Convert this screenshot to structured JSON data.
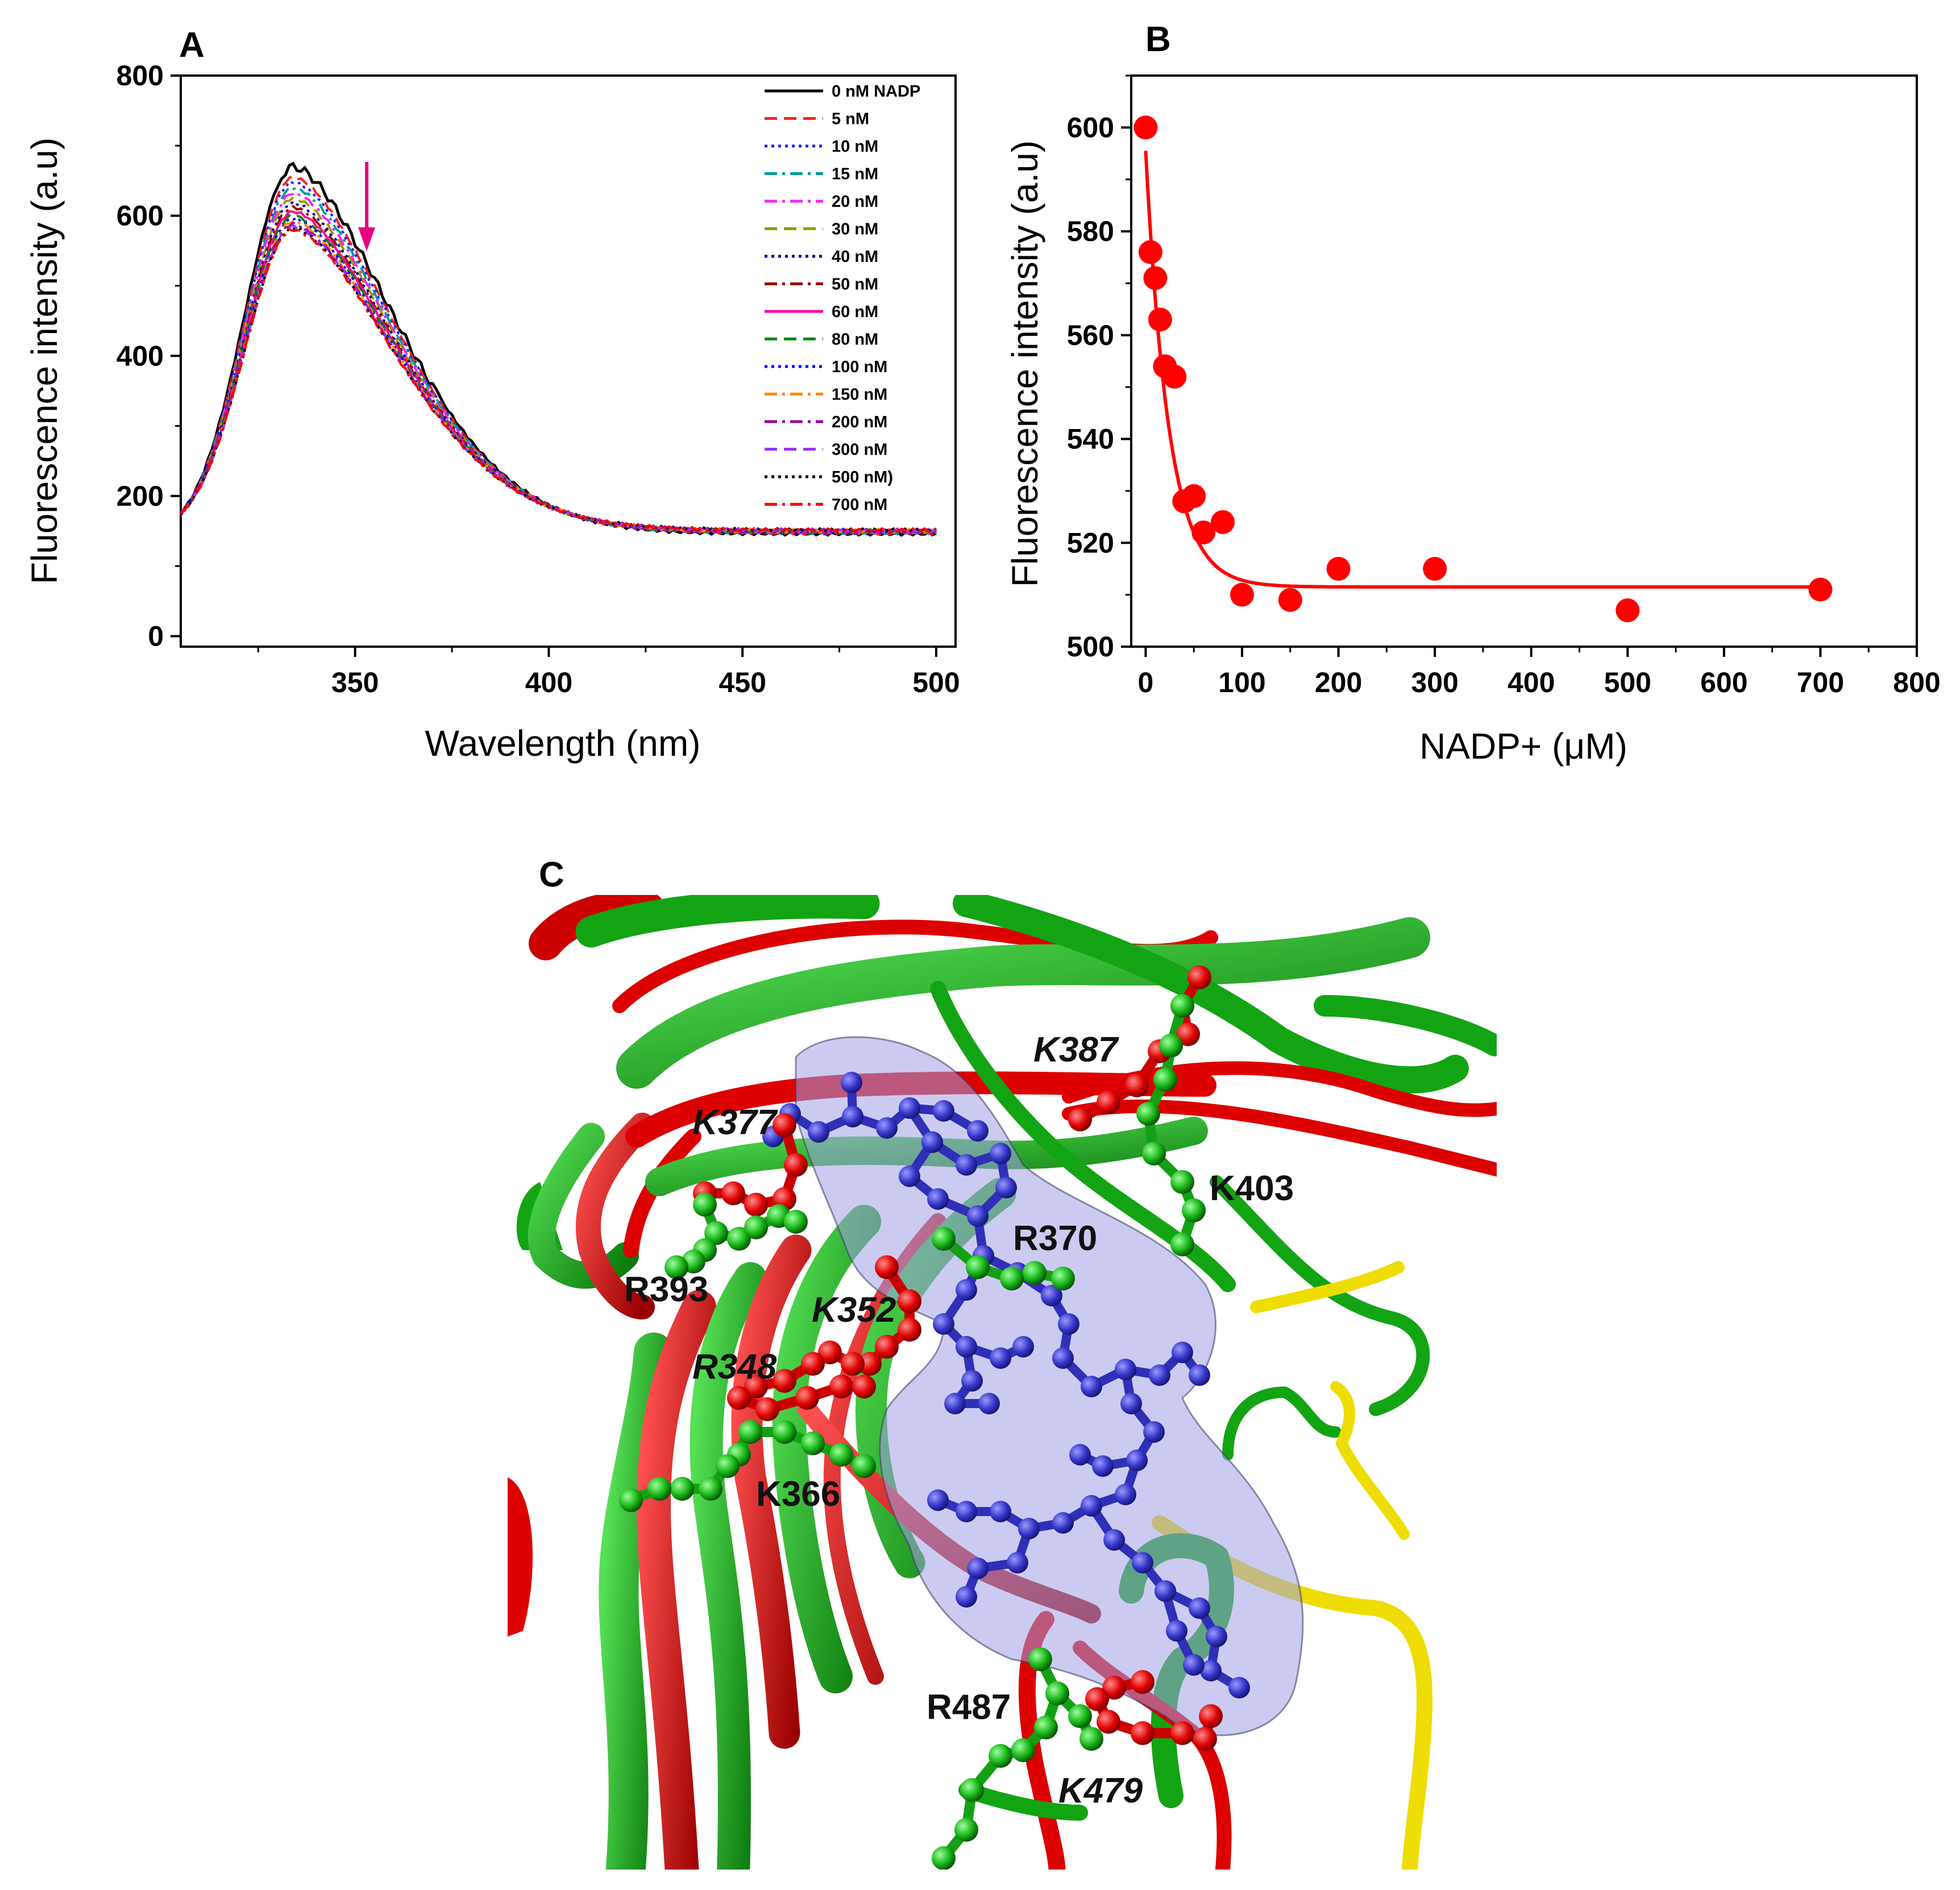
{
  "panels": {
    "A": "A",
    "B": "B",
    "C": "C"
  },
  "chart_data": [
    {
      "panel": "A",
      "type": "line",
      "xlabel": "Wavelength (nm)",
      "ylabel": "Fluorescence intensity (a.u)",
      "xlim": [
        305,
        505
      ],
      "ylim": [
        -15,
        800
      ],
      "xticks": [
        350,
        400,
        450,
        500
      ],
      "yticks": [
        0,
        200,
        400,
        600,
        800
      ],
      "peak_wavelength": 334,
      "arrow_wavelength": 353,
      "arrow_color": "#e6007e",
      "series": [
        {
          "name": "0 nM NADP",
          "peak": 670,
          "color": "#000000",
          "dash": "solid"
        },
        {
          "name": "5 nM",
          "peak": 655,
          "color": "#ff2020",
          "dash": "dash"
        },
        {
          "name": "10 nM",
          "peak": 648,
          "color": "#2020ff",
          "dash": "dot"
        },
        {
          "name": "15 nM",
          "peak": 640,
          "color": "#009999",
          "dash": "dashdot"
        },
        {
          "name": "20 nM",
          "peak": 632,
          "color": "#ff20ff",
          "dash": "dashdot"
        },
        {
          "name": "30 nM",
          "peak": 625,
          "color": "#999900",
          "dash": "dash"
        },
        {
          "name": "40 nM",
          "peak": 618,
          "color": "#000099",
          "dash": "dot"
        },
        {
          "name": "50 nM",
          "peak": 612,
          "color": "#990000",
          "dash": "dashdot"
        },
        {
          "name": "60 nM",
          "peak": 606,
          "color": "#ff0099",
          "dash": "solid"
        },
        {
          "name": "80 nM",
          "peak": 600,
          "color": "#008800",
          "dash": "dash"
        },
        {
          "name": "100 nM",
          "peak": 596,
          "color": "#0000ff",
          "dash": "dot"
        },
        {
          "name": "150 nM",
          "peak": 592,
          "color": "#ff8800",
          "dash": "dashdot"
        },
        {
          "name": "200 nM",
          "peak": 588,
          "color": "#990099",
          "dash": "dashdot"
        },
        {
          "name": "300 nM",
          "peak": 585,
          "color": "#9933ff",
          "dash": "dash"
        },
        {
          "name": "500 nM)",
          "peak": 582,
          "color": "#000000",
          "dash": "dot"
        },
        {
          "name": "700 nM",
          "peak": 580,
          "color": "#ff0000",
          "dash": "dashdot"
        }
      ]
    },
    {
      "panel": "B",
      "type": "scatter",
      "xlabel": "NADP+ (μM)",
      "ylabel": "Fluorescence intensity (a.u)",
      "xlim": [
        -15,
        800
      ],
      "ylim": [
        500,
        610
      ],
      "xticks": [
        0,
        100,
        200,
        300,
        400,
        500,
        600,
        700,
        800
      ],
      "yticks": [
        500,
        520,
        540,
        560,
        580,
        600
      ],
      "color": "#ff0000",
      "x": [
        0,
        5,
        10,
        15,
        20,
        30,
        40,
        50,
        60,
        80,
        100,
        150,
        200,
        300,
        500,
        700
      ],
      "y": [
        600,
        576,
        571,
        563,
        554,
        552,
        528,
        529,
        522,
        524,
        510,
        509,
        515,
        515,
        507,
        511
      ],
      "fit": {
        "type": "exponential",
        "y0": 511.5,
        "A": 84,
        "tau": 24
      }
    }
  ],
  "structure": {
    "labels": [
      {
        "text": "K387",
        "italic": true
      },
      {
        "text": "K377",
        "italic": true
      },
      {
        "text": "K403",
        "italic": false
      },
      {
        "text": "R370",
        "italic": false
      },
      {
        "text": "R393",
        "italic": false
      },
      {
        "text": "K352",
        "italic": true
      },
      {
        "text": "R348",
        "italic": true
      },
      {
        "text": "K366",
        "italic": false
      },
      {
        "text": "R487",
        "italic": false
      },
      {
        "text": "K479",
        "italic": true
      }
    ],
    "colors": {
      "green": "#15b015",
      "red": "#e00000",
      "yellow": "#f0e000",
      "ligand": "#3a3ac8",
      "surface": "#a0a0e6"
    }
  }
}
